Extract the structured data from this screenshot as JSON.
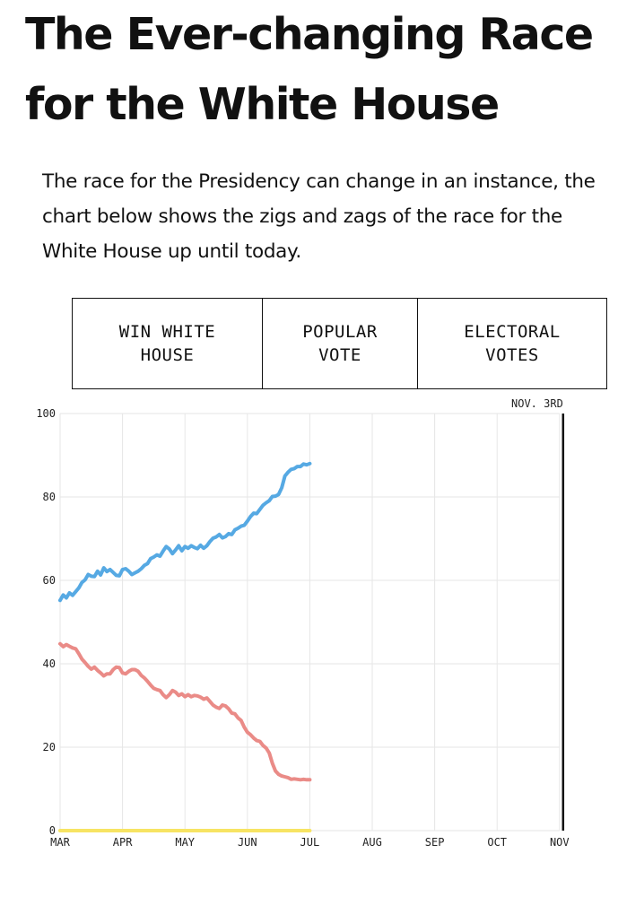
{
  "title": "The Ever-changing Race for the White House",
  "subtitle": "The race for the Presidency can change in an instance, the chart below shows the zigs and zags of the race for the White House up until today.",
  "tabs": [
    {
      "label": "WIN WHITE\nHOUSE"
    },
    {
      "label": "POPULAR\nVOTE"
    },
    {
      "label": "ELECTORAL\nVOTES"
    }
  ],
  "chart_data": {
    "type": "line",
    "x_ticks": [
      "MAR",
      "APR",
      "MAY",
      "JUN",
      "JUL",
      "AUG",
      "SEP",
      "OCT",
      "NOV"
    ],
    "y_ticks": [
      0,
      20,
      40,
      60,
      80,
      100
    ],
    "ylim": [
      0,
      100
    ],
    "grid": true,
    "annotation": "NOV. 3RD",
    "series": [
      {
        "color": "#56a9e3",
        "x": [
          0,
          0.05,
          0.1,
          0.15,
          0.2,
          0.25,
          0.3,
          0.35,
          0.4,
          0.45,
          0.5,
          0.55,
          0.6,
          0.65,
          0.7,
          0.75,
          0.8,
          0.85,
          0.9,
          0.95,
          1.0,
          1.05,
          1.1,
          1.15,
          1.2,
          1.25,
          1.3,
          1.35,
          1.4,
          1.45,
          1.5,
          1.55,
          1.6,
          1.65,
          1.7,
          1.75,
          1.8,
          1.85,
          1.9,
          1.95,
          2.0,
          2.05,
          2.1,
          2.15,
          2.2,
          2.25,
          2.3,
          2.35,
          2.4,
          2.45,
          2.5,
          2.55,
          2.6,
          2.65,
          2.7,
          2.75,
          2.8,
          2.85,
          2.9,
          2.95,
          3.0,
          3.05,
          3.1,
          3.15,
          3.2,
          3.25,
          3.3,
          3.35,
          3.4,
          3.45,
          3.5,
          3.55,
          3.6,
          3.65,
          3.7,
          3.75,
          3.8,
          3.85,
          3.9,
          3.95,
          4.0
        ],
        "y": [
          55.2,
          56.5,
          55.8,
          57.0,
          56.4,
          57.3,
          58.2,
          59.5,
          60.1,
          61.4,
          61.0,
          60.9,
          62.2,
          61.3,
          63.0,
          62.1,
          62.6,
          61.9,
          61.2,
          61.1,
          62.6,
          62.8,
          62.2,
          61.4,
          61.8,
          62.2,
          62.8,
          63.6,
          64.0,
          65.2,
          65.6,
          66.1,
          65.8,
          67.0,
          68.1,
          67.5,
          66.4,
          67.3,
          68.3,
          67.1,
          68.1,
          67.7,
          68.3,
          67.9,
          67.6,
          68.4,
          67.7,
          68.3,
          69.3,
          70.1,
          70.4,
          71.0,
          70.2,
          70.5,
          71.2,
          71.0,
          72.1,
          72.5,
          73.0,
          73.2,
          74.2,
          75.3,
          76.1,
          76.0,
          77.0,
          78.0,
          78.6,
          79.1,
          80.1,
          80.2,
          80.6,
          82.2,
          85.0,
          85.9,
          86.6,
          86.8,
          87.3,
          87.3,
          87.9,
          87.7,
          88.0
        ]
      },
      {
        "color": "#ea8b87",
        "x": [
          0,
          0.05,
          0.1,
          0.15,
          0.2,
          0.25,
          0.3,
          0.35,
          0.4,
          0.45,
          0.5,
          0.55,
          0.6,
          0.65,
          0.7,
          0.75,
          0.8,
          0.85,
          0.9,
          0.95,
          1.0,
          1.05,
          1.1,
          1.15,
          1.2,
          1.25,
          1.3,
          1.35,
          1.4,
          1.45,
          1.5,
          1.55,
          1.6,
          1.65,
          1.7,
          1.75,
          1.8,
          1.85,
          1.9,
          1.95,
          2.0,
          2.05,
          2.1,
          2.15,
          2.2,
          2.25,
          2.3,
          2.35,
          2.4,
          2.45,
          2.5,
          2.55,
          2.6,
          2.65,
          2.7,
          2.75,
          2.8,
          2.85,
          2.9,
          2.95,
          3.0,
          3.05,
          3.1,
          3.15,
          3.2,
          3.25,
          3.3,
          3.35,
          3.4,
          3.45,
          3.5,
          3.55,
          3.6,
          3.65,
          3.7,
          3.75,
          3.8,
          3.85,
          3.9,
          3.95,
          4.0
        ],
        "y": [
          44.8,
          44.1,
          44.6,
          44.2,
          43.8,
          43.6,
          42.4,
          41.1,
          40.3,
          39.4,
          38.7,
          39.2,
          38.4,
          37.8,
          37.1,
          37.6,
          37.6,
          38.6,
          39.2,
          39.1,
          37.8,
          37.6,
          38.2,
          38.6,
          38.6,
          38.2,
          37.2,
          36.6,
          35.8,
          34.9,
          34.1,
          33.8,
          33.6,
          32.6,
          31.9,
          32.6,
          33.6,
          33.2,
          32.4,
          32.8,
          32.1,
          32.6,
          32.1,
          32.4,
          32.3,
          32.0,
          31.5,
          31.8,
          31.0,
          30.1,
          29.6,
          29.3,
          30.1,
          29.9,
          29.2,
          28.2,
          28.0,
          27.0,
          26.4,
          24.8,
          23.6,
          23.0,
          22.2,
          21.6,
          21.4,
          20.4,
          19.8,
          18.6,
          16.2,
          14.3,
          13.5,
          13.1,
          12.9,
          12.7,
          12.3,
          12.4,
          12.3,
          12.2,
          12.3,
          12.2,
          12.2
        ]
      },
      {
        "color": "#f7e463",
        "x": [
          0,
          4.0
        ],
        "y": [
          0,
          0
        ]
      }
    ]
  }
}
